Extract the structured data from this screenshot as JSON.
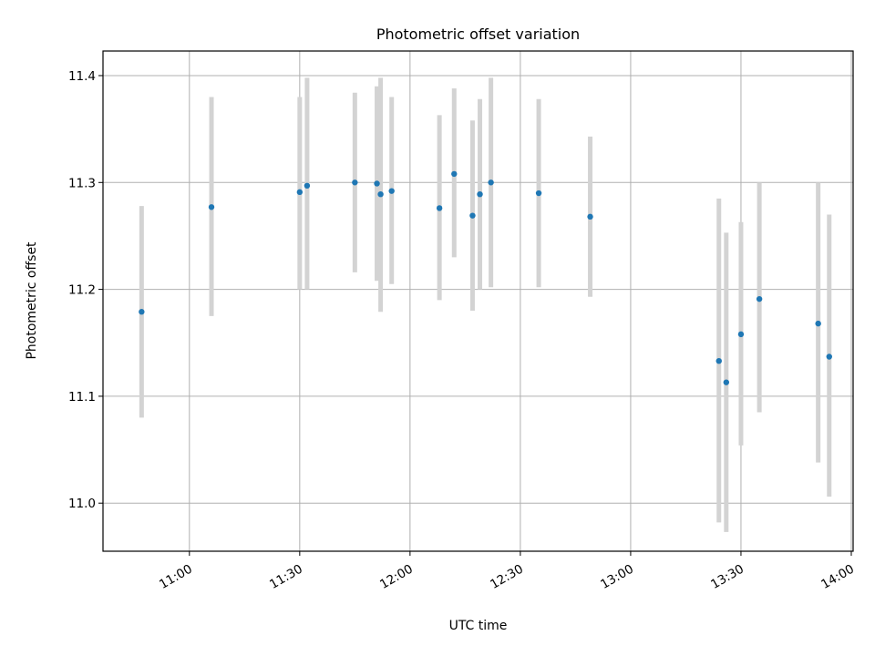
{
  "chart_data": {
    "type": "scatter",
    "title": "Photometric offset variation",
    "xlabel": "UTC time",
    "ylabel": "Photometric offset",
    "x_unit": "UTC time of day (HH:MM)",
    "xlim": [
      "10:36:30",
      "14:00:30"
    ],
    "ylim": [
      10.955,
      11.423
    ],
    "x_ticks": [
      "11:00",
      "11:30",
      "12:00",
      "12:30",
      "13:00",
      "13:30",
      "14:00"
    ],
    "y_ticks": [
      11.0,
      11.1,
      11.2,
      11.3,
      11.4
    ],
    "y_tick_labels": [
      "11.0",
      "11.1",
      "11.2",
      "11.3",
      "11.4"
    ],
    "grid": true,
    "marker_color": "#1f77b4",
    "errorbar_color": "#d3d3d3",
    "points": [
      {
        "time": "10:47",
        "value": 11.179,
        "err_low": 11.08,
        "err_high": 11.278
      },
      {
        "time": "11:06",
        "value": 11.277,
        "err_low": 11.175,
        "err_high": 11.38
      },
      {
        "time": "11:30",
        "value": 11.291,
        "err_low": 11.2,
        "err_high": 11.38
      },
      {
        "time": "11:32",
        "value": 11.297,
        "err_low": 11.2,
        "err_high": 11.398
      },
      {
        "time": "11:45",
        "value": 11.3,
        "err_low": 11.216,
        "err_high": 11.384
      },
      {
        "time": "11:51",
        "value": 11.299,
        "err_low": 11.208,
        "err_high": 11.39
      },
      {
        "time": "11:52",
        "value": 11.289,
        "err_low": 11.179,
        "err_high": 11.398
      },
      {
        "time": "11:55",
        "value": 11.292,
        "err_low": 11.205,
        "err_high": 11.38
      },
      {
        "time": "12:08",
        "value": 11.276,
        "err_low": 11.19,
        "err_high": 11.363
      },
      {
        "time": "12:12",
        "value": 11.308,
        "err_low": 11.23,
        "err_high": 11.388
      },
      {
        "time": "12:17",
        "value": 11.269,
        "err_low": 11.18,
        "err_high": 11.358
      },
      {
        "time": "12:19",
        "value": 11.289,
        "err_low": 11.2,
        "err_high": 11.378
      },
      {
        "time": "12:22",
        "value": 11.3,
        "err_low": 11.202,
        "err_high": 11.398
      },
      {
        "time": "12:35",
        "value": 11.29,
        "err_low": 11.202,
        "err_high": 11.378
      },
      {
        "time": "12:49",
        "value": 11.268,
        "err_low": 11.193,
        "err_high": 11.343
      },
      {
        "time": "13:24",
        "value": 11.133,
        "err_low": 10.982,
        "err_high": 11.285
      },
      {
        "time": "13:26",
        "value": 11.113,
        "err_low": 10.973,
        "err_high": 11.253
      },
      {
        "time": "13:30",
        "value": 11.158,
        "err_low": 11.054,
        "err_high": 11.263
      },
      {
        "time": "13:35",
        "value": 11.191,
        "err_low": 11.085,
        "err_high": 11.3
      },
      {
        "time": "13:51",
        "value": 11.168,
        "err_low": 11.038,
        "err_high": 11.3
      },
      {
        "time": "13:54",
        "value": 11.137,
        "err_low": 11.006,
        "err_high": 11.27
      }
    ]
  }
}
